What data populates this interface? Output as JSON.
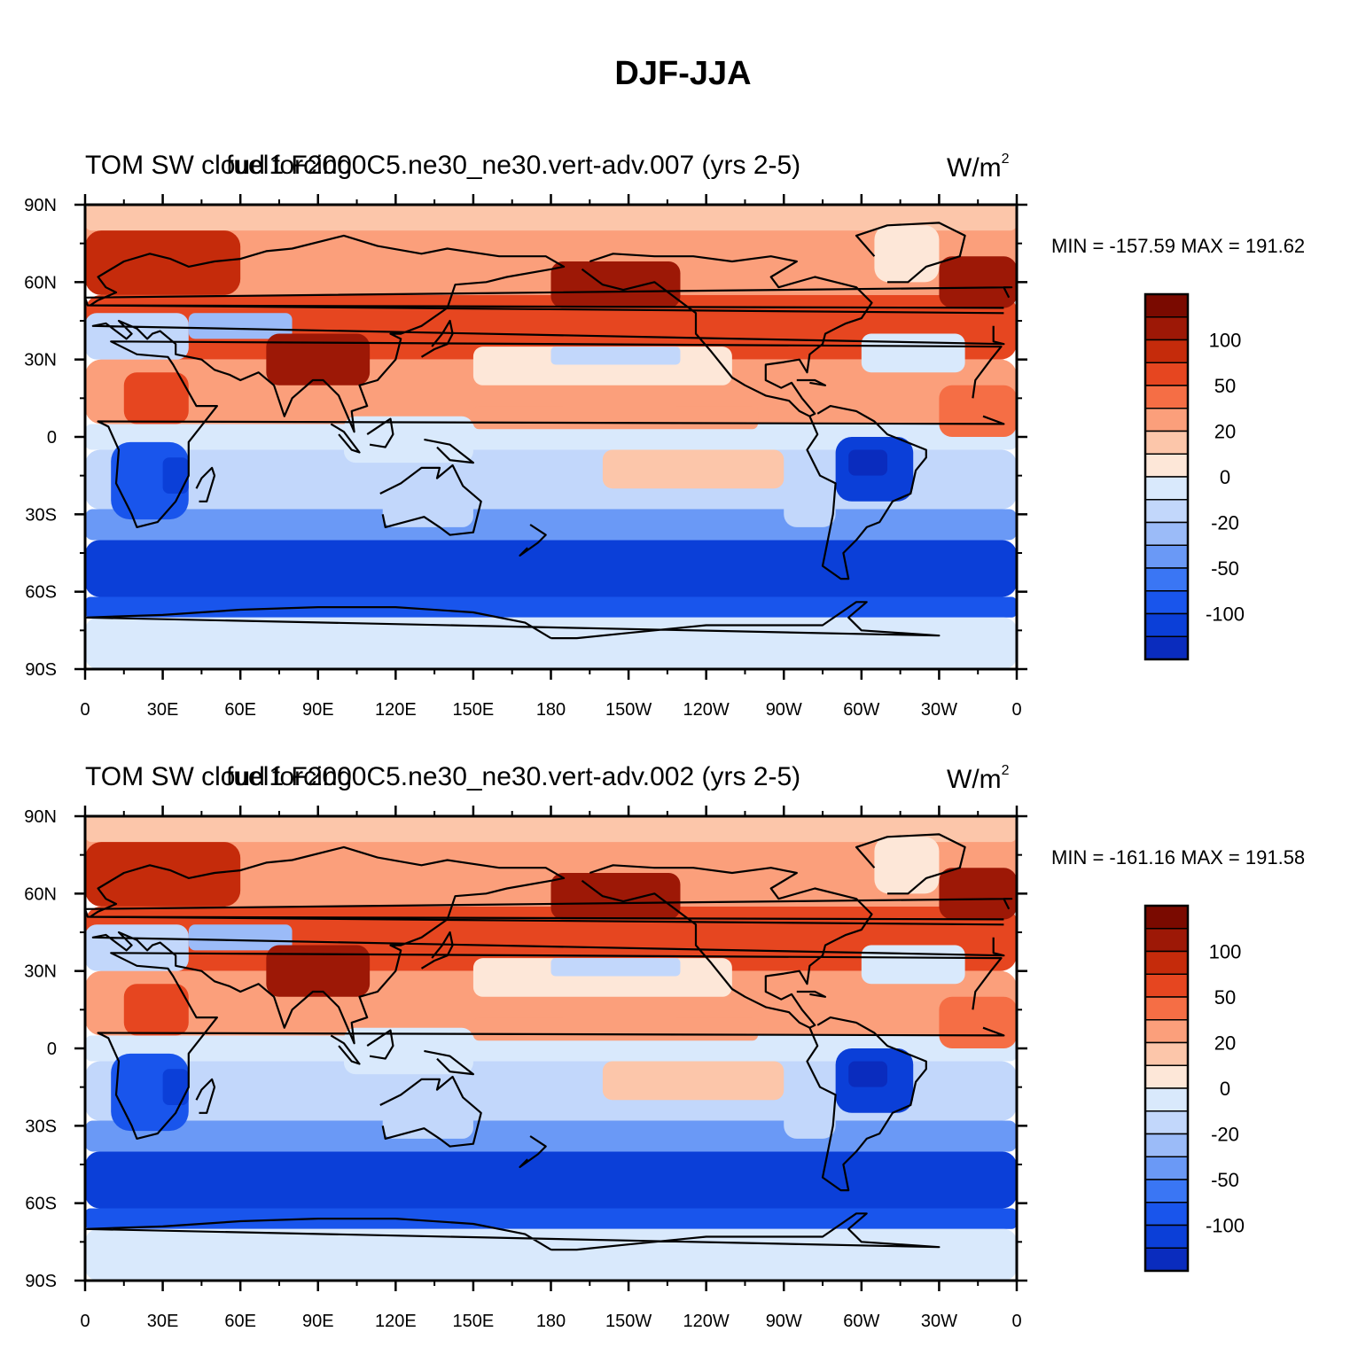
{
  "title": "DJF-JJA",
  "colors": {
    "scale": [
      "#000080",
      "#0a2cbe",
      "#0b3fd8",
      "#1955ec",
      "#3a76f4",
      "#6a99f6",
      "#9bbbf8",
      "#c2d7fb",
      "#d9e9fc",
      "#fde7d8",
      "#fcc6aa",
      "#fb9f7b",
      "#f56e45",
      "#e64620",
      "#c52b0b",
      "#9d1806",
      "#7a0a00"
    ],
    "coast": "#000000"
  },
  "colorbar": {
    "labels": [
      "100",
      "50",
      "20",
      "0",
      "-20",
      "-50",
      "-100"
    ]
  },
  "axes": {
    "lat_labels": [
      "90N",
      "60N",
      "30N",
      "0",
      "30S",
      "60S",
      "90S"
    ],
    "lon_labels": [
      "0",
      "30E",
      "60E",
      "90E",
      "120E",
      "150E",
      "180",
      "150W",
      "120W",
      "90W",
      "60W",
      "30W",
      "0"
    ]
  },
  "panels": [
    {
      "left_label": "TOM SW cloud forcing",
      "case_label": "fuel1 F2000C5.ne30_ne30.vert-adv.007 (yrs 2-5)",
      "units_base": "W/m",
      "units_exp": "2",
      "min_max": "MIN = -157.59 MAX = 191.62"
    },
    {
      "left_label": "TOM SW cloud forcing",
      "case_label": "fuel1 F2000C5.ne30_ne30.vert-adv.002 (yrs 2-5)",
      "units_base": "W/m",
      "units_exp": "2",
      "min_max": "MIN = -161.16 MAX = 191.58"
    }
  ]
}
